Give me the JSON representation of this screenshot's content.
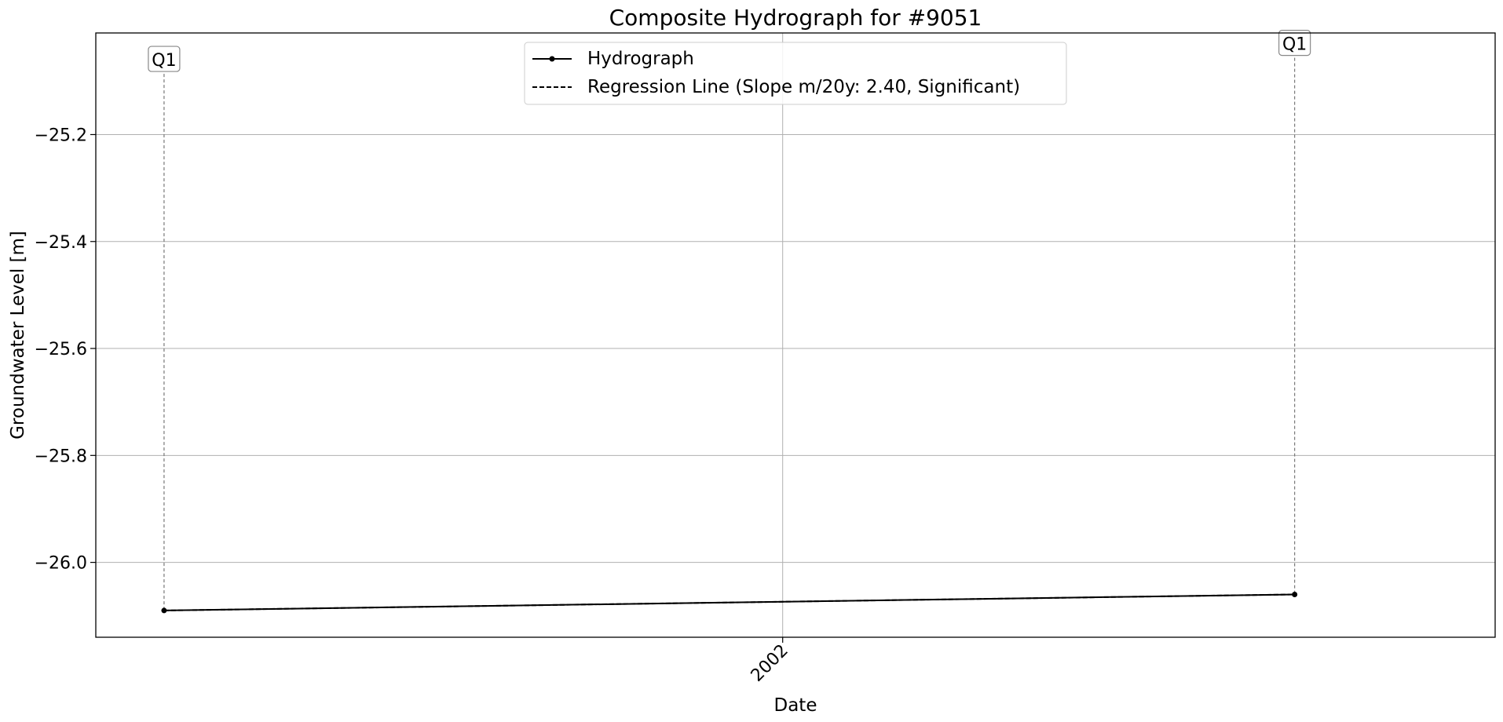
{
  "chart_data": {
    "type": "line",
    "title": "Composite Hydrograph for  #9051",
    "xlabel": "Date",
    "ylabel": "Groundwater Level [m]",
    "xlim": [
      "2001-07-24",
      "2002-06-17"
    ],
    "ylim": [
      -26.14,
      -25.01
    ],
    "x_ticks": [
      {
        "date": "2002-01-01",
        "label": "2002"
      }
    ],
    "y_ticks": [
      -25.2,
      -25.4,
      -25.6,
      -25.8,
      -26.0
    ],
    "y_tick_labels": [
      "−25.2",
      "−25.4",
      "−25.6",
      "−25.8",
      "−26.0"
    ],
    "grid": true,
    "legend_placement": "upper center",
    "series": [
      {
        "name": "Hydrograph",
        "style": "solid-marker",
        "color": "#000000",
        "x": [
          "2001-08-09",
          "2002-05-01"
        ],
        "y": [
          -26.09,
          -26.06
        ]
      },
      {
        "name": "Regression Line (Slope m/20y: 2.40, Significant)",
        "style": "dashed",
        "color": "#000000",
        "x": [
          "2001-08-09",
          "2002-05-01"
        ],
        "y": [
          -26.09,
          -26.06
        ]
      }
    ],
    "annotations": [
      {
        "text": "Q1",
        "x": "2001-08-09",
        "y_from": -26.09,
        "y_label": -25.06
      },
      {
        "text": "Q1",
        "x": "2002-05-01",
        "y_from": -26.06,
        "y_label": -25.03
      }
    ]
  }
}
